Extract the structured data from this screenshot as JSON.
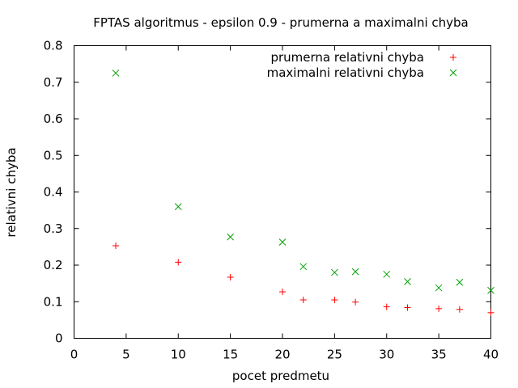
{
  "chart_data": {
    "type": "scatter",
    "title": "FPTAS algoritmus - epsilon 0.9 - prumerna a maximalni chyba",
    "xlabel": "pocet predmetu",
    "ylabel": "relativni chyba",
    "xlim": [
      0,
      40
    ],
    "ylim": [
      0,
      0.8
    ],
    "xticks": [
      "0",
      "5",
      "10",
      "15",
      "20",
      "25",
      "30",
      "35",
      "40"
    ],
    "yticks": [
      "0",
      "0.1",
      "0.2",
      "0.3",
      "0.4",
      "0.5",
      "0.6",
      "0.7",
      "0.8"
    ],
    "grid": false,
    "legend_position": "top-right",
    "series": [
      {
        "name": "prumerna relativni chyba",
        "marker": "+",
        "color": "#ff0000",
        "x": [
          4,
          10,
          15,
          20,
          22,
          25,
          27,
          30,
          32,
          35,
          37,
          40
        ],
        "y": [
          0.253,
          0.208,
          0.167,
          0.127,
          0.105,
          0.105,
          0.099,
          0.086,
          0.084,
          0.081,
          0.079,
          0.07
        ]
      },
      {
        "name": "maximalni relativni chyba",
        "marker": "x",
        "color": "#00a000",
        "x": [
          4,
          10,
          15,
          20,
          22,
          25,
          27,
          30,
          32,
          35,
          37,
          40
        ],
        "y": [
          0.725,
          0.36,
          0.277,
          0.263,
          0.196,
          0.18,
          0.182,
          0.175,
          0.155,
          0.138,
          0.153,
          0.131
        ]
      }
    ]
  }
}
